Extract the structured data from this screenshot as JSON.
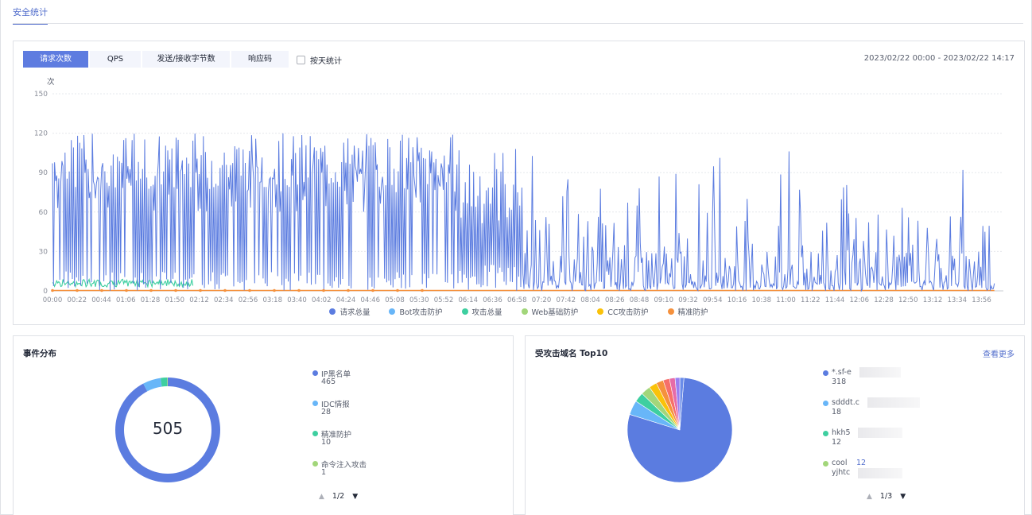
{
  "top_tab": "安全统计",
  "traffic": {
    "tabs": [
      {
        "label": "请求次数",
        "active": true
      },
      {
        "label": "QPS",
        "active": false
      },
      {
        "label": "发送/接收字节数",
        "active": false
      },
      {
        "label": "响应码",
        "active": false
      }
    ],
    "by_day_label": "按天统计",
    "date_range": "2023/02/22 00:00 - 2023/02/22 14:17",
    "y_unit": "次",
    "y_ticks": [
      "150",
      "120",
      "90",
      "60",
      "30",
      "0"
    ],
    "x_ticks": [
      "00:00",
      "00:22",
      "00:44",
      "01:06",
      "01:28",
      "01:50",
      "02:12",
      "02:34",
      "02:56",
      "03:18",
      "03:40",
      "04:02",
      "04:24",
      "04:46",
      "05:08",
      "05:30",
      "05:52",
      "06:14",
      "06:36",
      "06:58",
      "07:20",
      "07:42",
      "08:04",
      "08:26",
      "08:48",
      "09:10",
      "09:32",
      "09:54",
      "10:16",
      "10:38",
      "11:00",
      "11:22",
      "11:44",
      "12:06",
      "12:28",
      "12:50",
      "13:12",
      "13:34",
      "13:56"
    ],
    "legend": [
      {
        "label": "请求总量",
        "color": "#5b7ce0"
      },
      {
        "label": "Bot攻击防护",
        "color": "#68b6f8"
      },
      {
        "label": "攻击总量",
        "color": "#3ecfa0"
      },
      {
        "label": "Web基础防护",
        "color": "#a2d67a"
      },
      {
        "label": "CC攻击防护",
        "color": "#fac20a"
      },
      {
        "label": "精准防护",
        "color": "#f5913d"
      }
    ]
  },
  "chart_data": {
    "type": "line",
    "ylabel": "次",
    "ylim": [
      0,
      150
    ],
    "x_range": [
      "00:00",
      "14:17"
    ],
    "grid": true,
    "legend_position": "bottom",
    "series": [
      {
        "name": "请求总量",
        "approx_peaks": [
          115,
          122,
          120,
          110,
          118,
          115,
          110,
          105,
          100,
          95,
          110,
          85,
          98,
          75,
          92,
          50,
          40,
          65,
          110,
          90,
          95,
          70,
          35,
          60,
          95,
          60,
          85,
          60,
          82,
          100,
          105
        ]
      },
      {
        "name": "攻击总量",
        "approx_range": [
          0,
          10
        ]
      },
      {
        "name": "精准防护",
        "approx_range": [
          0,
          1
        ]
      }
    ]
  },
  "events": {
    "title": "事件分布",
    "total": "505",
    "items": [
      {
        "label": "IP黑名单",
        "value": "465",
        "color": "#5b7ce0"
      },
      {
        "label": "IDC情报",
        "value": "28",
        "color": "#68b6f8"
      },
      {
        "label": "精准防护",
        "value": "10",
        "color": "#3ecfa0"
      },
      {
        "label": "命令注入攻击",
        "value": "1",
        "color": "#a2d67a"
      }
    ],
    "page": "1/2"
  },
  "domains": {
    "title": "受攻击域名 Top10",
    "view_more": "查看更多",
    "items": [
      {
        "label": "*.sf-e",
        "value": "318",
        "color": "#5b7ce0"
      },
      {
        "label": "sdddt.c",
        "value": "18",
        "color": "#68b6f8"
      },
      {
        "label": "hkh5",
        "value": "12",
        "color": "#3ecfa0"
      },
      {
        "label": "cool",
        "extra": "12",
        "value": "yjhtc",
        "color": "#a2d67a"
      }
    ],
    "page": "1/3"
  }
}
